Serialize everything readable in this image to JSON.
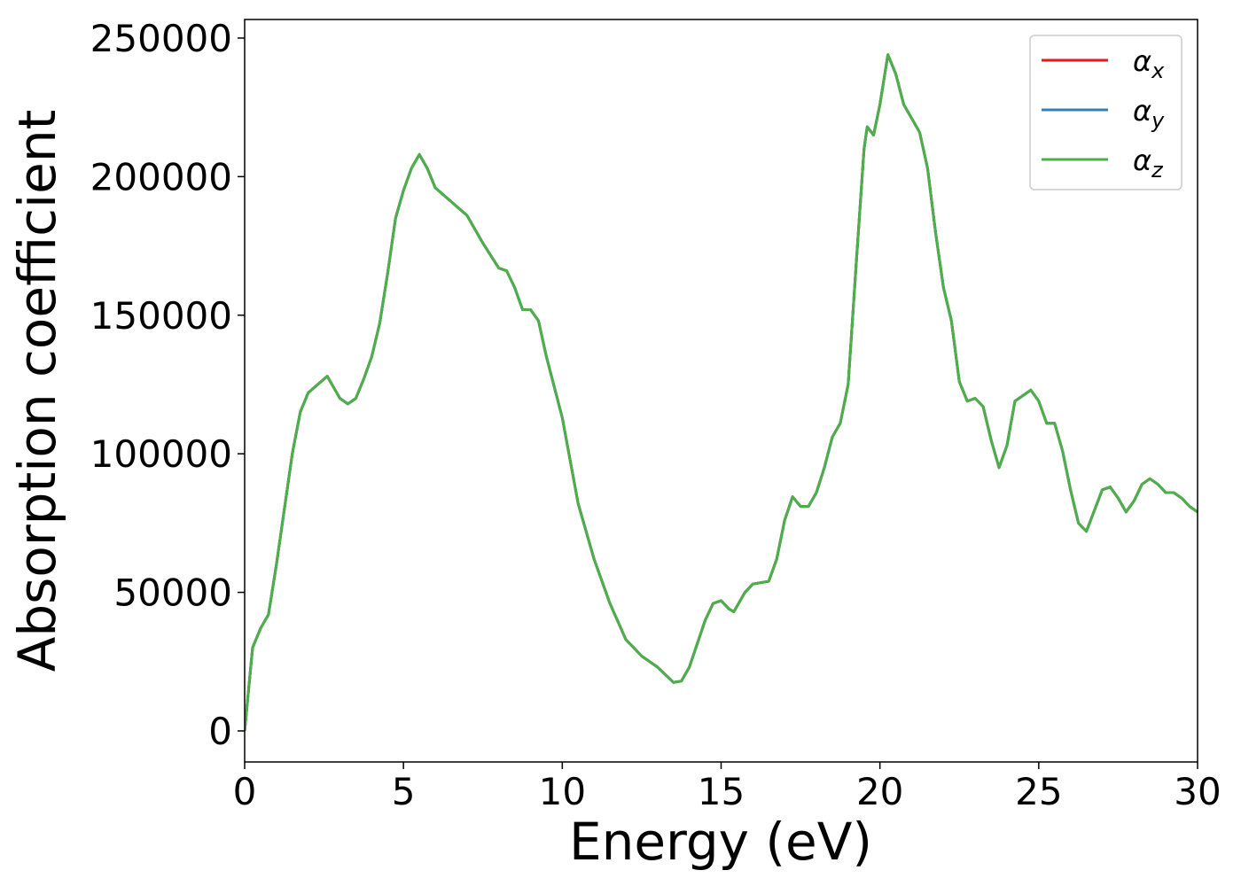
{
  "chart_data": {
    "type": "line",
    "xlabel": "Energy (eV)",
    "ylabel": "Absorption coefficient",
    "x": [
      0,
      0.25,
      0.5,
      0.75,
      1.0,
      1.25,
      1.5,
      1.75,
      2.0,
      2.25,
      2.5,
      2.6,
      2.75,
      3.0,
      3.25,
      3.5,
      3.75,
      4.0,
      4.25,
      4.5,
      4.75,
      5.0,
      5.25,
      5.5,
      5.75,
      6.0,
      6.5,
      7.0,
      7.5,
      8.0,
      8.25,
      8.5,
      8.75,
      9.0,
      9.25,
      9.5,
      10.0,
      10.5,
      11.0,
      11.5,
      12.0,
      12.5,
      13.0,
      13.5,
      13.75,
      14.0,
      14.5,
      14.75,
      15.0,
      15.25,
      15.4,
      15.75,
      16.0,
      16.5,
      16.75,
      17.0,
      17.25,
      17.5,
      17.75,
      18.0,
      18.25,
      18.5,
      18.75,
      19.0,
      19.25,
      19.5,
      19.6,
      19.8,
      20.0,
      20.25,
      20.5,
      20.75,
      21.0,
      21.25,
      21.5,
      21.75,
      22.0,
      22.25,
      22.5,
      22.75,
      23.0,
      23.25,
      23.5,
      23.75,
      24.0,
      24.25,
      24.5,
      24.75,
      25.0,
      25.25,
      25.5,
      25.75,
      26.0,
      26.25,
      26.5,
      27.0,
      27.25,
      27.5,
      27.75,
      28.0,
      28.25,
      28.5,
      28.75,
      29.0,
      29.25,
      29.5,
      29.75,
      30.0
    ],
    "series": [
      {
        "name": "αx",
        "color": "#e41a1c",
        "values": [
          0,
          30000,
          37000,
          42000,
          60000,
          80000,
          100000,
          115000,
          122000,
          124500,
          127000,
          128000,
          125000,
          120000,
          118000,
          120000,
          127000,
          135000,
          147000,
          165000,
          185000,
          195000,
          203000,
          208000,
          203000,
          196000,
          191000,
          186000,
          176000,
          167000,
          166000,
          160000,
          152000,
          152000,
          148000,
          135000,
          113000,
          82000,
          62000,
          46000,
          33000,
          27000,
          23000,
          17500,
          18000,
          23000,
          40000,
          46000,
          47000,
          44000,
          43000,
          50000,
          53000,
          54000,
          62000,
          76000,
          84500,
          81000,
          81000,
          86000,
          95000,
          106000,
          111000,
          125000,
          168000,
          210000,
          218000,
          215000,
          226000,
          244000,
          237000,
          226000,
          221000,
          216000,
          203000,
          180000,
          160000,
          148000,
          126000,
          119000,
          120000,
          117000,
          105000,
          95000,
          103000,
          119000,
          121000,
          123000,
          119000,
          111000,
          111000,
          101000,
          87000,
          75000,
          72000,
          87000,
          88000,
          84000,
          79000,
          83000,
          89000,
          91000,
          89000,
          86000,
          86000,
          84000,
          81000,
          79000
        ]
      },
      {
        "name": "αy",
        "color": "#377eb8",
        "values": [
          0,
          30000,
          37000,
          42000,
          60000,
          80000,
          100000,
          115000,
          122000,
          124500,
          127000,
          128000,
          125000,
          120000,
          118000,
          120000,
          127000,
          135000,
          147000,
          165000,
          185000,
          195000,
          203000,
          208000,
          203000,
          196000,
          191000,
          186000,
          176000,
          167000,
          166000,
          160000,
          152000,
          152000,
          148000,
          135000,
          113000,
          82000,
          62000,
          46000,
          33000,
          27000,
          23000,
          17500,
          18000,
          23000,
          40000,
          46000,
          47000,
          44000,
          43000,
          50000,
          53000,
          54000,
          62000,
          76000,
          84500,
          81000,
          81000,
          86000,
          95000,
          106000,
          111000,
          125000,
          168000,
          210000,
          218000,
          215000,
          226000,
          244000,
          237000,
          226000,
          221000,
          216000,
          203000,
          180000,
          160000,
          148000,
          126000,
          119000,
          120000,
          117000,
          105000,
          95000,
          103000,
          119000,
          121000,
          123000,
          119000,
          111000,
          111000,
          101000,
          87000,
          75000,
          72000,
          87000,
          88000,
          84000,
          79000,
          83000,
          89000,
          91000,
          89000,
          86000,
          86000,
          84000,
          81000,
          79000
        ]
      },
      {
        "name": "αz",
        "color": "#4daf4a",
        "values": [
          0,
          30000,
          37000,
          42000,
          60000,
          80000,
          100000,
          115000,
          122000,
          124500,
          127000,
          128000,
          125000,
          120000,
          118000,
          120000,
          127000,
          135000,
          147000,
          165000,
          185000,
          195000,
          203000,
          208000,
          203000,
          196000,
          191000,
          186000,
          176000,
          167000,
          166000,
          160000,
          152000,
          152000,
          148000,
          135000,
          113000,
          82000,
          62000,
          46000,
          33000,
          27000,
          23000,
          17500,
          18000,
          23000,
          40000,
          46000,
          47000,
          44000,
          43000,
          50000,
          53000,
          54000,
          62000,
          76000,
          84500,
          81000,
          81000,
          86000,
          95000,
          106000,
          111000,
          125000,
          168000,
          210000,
          218000,
          215000,
          226000,
          244000,
          237000,
          226000,
          221000,
          216000,
          203000,
          180000,
          160000,
          148000,
          126000,
          119000,
          120000,
          117000,
          105000,
          95000,
          103000,
          119000,
          121000,
          123000,
          119000,
          111000,
          111000,
          101000,
          87000,
          75000,
          72000,
          87000,
          88000,
          84000,
          79000,
          83000,
          89000,
          91000,
          89000,
          86000,
          86000,
          84000,
          81000,
          79000
        ]
      }
    ],
    "xlim": [
      0,
      30
    ],
    "xticks": [
      0,
      5,
      10,
      15,
      20,
      25,
      30
    ],
    "ylim": [
      -11200,
      256700
    ],
    "yticks": [
      0,
      50000,
      100000,
      150000,
      200000,
      250000
    ],
    "legend": "upper right",
    "grid": false
  }
}
